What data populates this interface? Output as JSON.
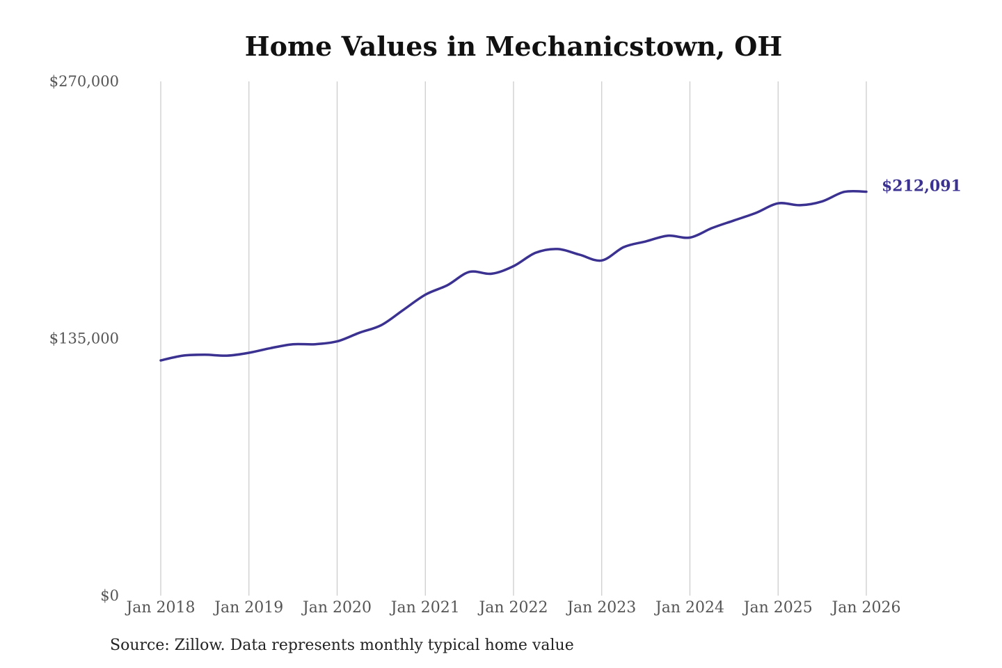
{
  "chart_data": {
    "type": "line",
    "title": "Home Values in Mechanicstown, OH",
    "xlabel": "",
    "ylabel": "",
    "ylim": [
      0,
      270000
    ],
    "y_ticks": [
      {
        "value": 0,
        "label": "$0"
      },
      {
        "value": 135000,
        "label": "$135,000"
      },
      {
        "value": 270000,
        "label": "$270,000"
      }
    ],
    "x_ticks": [
      {
        "value": "2018-01",
        "label": "Jan 2018"
      },
      {
        "value": "2019-01",
        "label": "Jan 2019"
      },
      {
        "value": "2020-01",
        "label": "Jan 2020"
      },
      {
        "value": "2021-01",
        "label": "Jan 2021"
      },
      {
        "value": "2022-01",
        "label": "Jan 2022"
      },
      {
        "value": "2023-01",
        "label": "Jan 2023"
      },
      {
        "value": "2024-01",
        "label": "Jan 2024"
      },
      {
        "value": "2025-01",
        "label": "Jan 2025"
      },
      {
        "value": "2026-01",
        "label": "Jan 2026"
      }
    ],
    "grid": "vertical",
    "series": [
      {
        "color": "#3a3190",
        "x": [
          "2018-01",
          "2018-04",
          "2018-07",
          "2018-10",
          "2019-01",
          "2019-04",
          "2019-07",
          "2019-10",
          "2020-01",
          "2020-04",
          "2020-07",
          "2020-10",
          "2021-01",
          "2021-04",
          "2021-07",
          "2021-10",
          "2022-01",
          "2022-04",
          "2022-07",
          "2022-10",
          "2023-01",
          "2023-04",
          "2023-07",
          "2023-10",
          "2024-01",
          "2024-04",
          "2024-07",
          "2024-10",
          "2025-01",
          "2025-04",
          "2025-07",
          "2025-10",
          "2026-01"
        ],
        "values": [
          123500,
          126000,
          126500,
          126000,
          127500,
          130000,
          132000,
          132000,
          133500,
          138000,
          142000,
          150000,
          158000,
          163000,
          170000,
          169000,
          173000,
          180000,
          182000,
          179000,
          176000,
          183000,
          186000,
          189000,
          188000,
          193000,
          197000,
          201000,
          206000,
          205000,
          207000,
          212000,
          212091
        ]
      }
    ],
    "end_label": "$212,091",
    "source": "Source: Zillow. Data represents monthly typical home value"
  }
}
